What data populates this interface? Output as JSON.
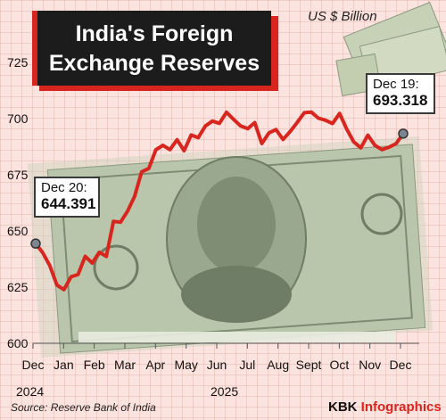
{
  "header": {
    "title_line1": "India's Foreign",
    "title_line2": "Exchange Reserves",
    "unit": "US $ Billion"
  },
  "callouts": {
    "start": {
      "label": "Dec 20:",
      "value": "644.391"
    },
    "end": {
      "label": "Dec 19:",
      "value": "693.318"
    }
  },
  "footer": {
    "source": "Source: Reserve Bank of India",
    "brand_main": "KBK ",
    "brand_accent": "Infographics"
  },
  "colors": {
    "line": "#d8261f",
    "background": "#fbe4df",
    "title_bg": "#1c1c1c",
    "accent": "#d8261f"
  },
  "chart_data": {
    "type": "line",
    "title": "India's Foreign Exchange Reserves",
    "ylabel": "US $ Billion",
    "ylim": [
      600,
      725
    ],
    "y_ticks": [
      600,
      625,
      650,
      675,
      700,
      725
    ],
    "x_tick_labels": [
      "Dec",
      "Jan",
      "Feb",
      "Mar",
      "Apr",
      "May",
      "Jun",
      "Jul",
      "Aug",
      "Sept",
      "Oct",
      "Nov",
      "Dec"
    ],
    "year_labels": [
      "2024",
      "2025"
    ],
    "grid": true,
    "series": [
      {
        "x": [
          "2024-12-20",
          "2024-12-27",
          "2025-01-03",
          "2025-01-10",
          "2025-01-17",
          "2025-01-24",
          "2025-01-31",
          "2025-02-07",
          "2025-02-14",
          "2025-02-21",
          "2025-02-28",
          "2025-03-07",
          "2025-03-14",
          "2025-03-21",
          "2025-03-28",
          "2025-04-04",
          "2025-04-11",
          "2025-04-18",
          "2025-04-25",
          "2025-05-02",
          "2025-05-09",
          "2025-05-16",
          "2025-05-23",
          "2025-05-30",
          "2025-06-06",
          "2025-06-13",
          "2025-06-20",
          "2025-06-27",
          "2025-07-04",
          "2025-07-11",
          "2025-07-18",
          "2025-07-25",
          "2025-08-01",
          "2025-08-08",
          "2025-08-15",
          "2025-08-22",
          "2025-08-29",
          "2025-09-05",
          "2025-09-12",
          "2025-09-19",
          "2025-09-26",
          "2025-10-03",
          "2025-10-10",
          "2025-10-17",
          "2025-10-24",
          "2025-10-31",
          "2025-11-07",
          "2025-11-14",
          "2025-11-21",
          "2025-11-28",
          "2025-12-05",
          "2025-12-12",
          "2025-12-19"
        ],
        "values": [
          644.391,
          640.3,
          634.6,
          625.9,
          623.9,
          629.6,
          630.6,
          638.7,
          635.7,
          640.5,
          638.7,
          654.3,
          653.9,
          658.8,
          665.4,
          676.3,
          677.8,
          686.1,
          688.1,
          686.2,
          690.6,
          685.7,
          692.7,
          691.5,
          696.7,
          698.9,
          697.9,
          702.8,
          699.7,
          696.7,
          695.5,
          698.2,
          688.9,
          693.6,
          695.1,
          690.7,
          694.2,
          698.3,
          702.6,
          702.9,
          700.2,
          699.3,
          697.8,
          702.3,
          695.4,
          689.7,
          687.0,
          692.6,
          688.1,
          686.2,
          687.3,
          688.9,
          693.318
        ]
      }
    ]
  }
}
